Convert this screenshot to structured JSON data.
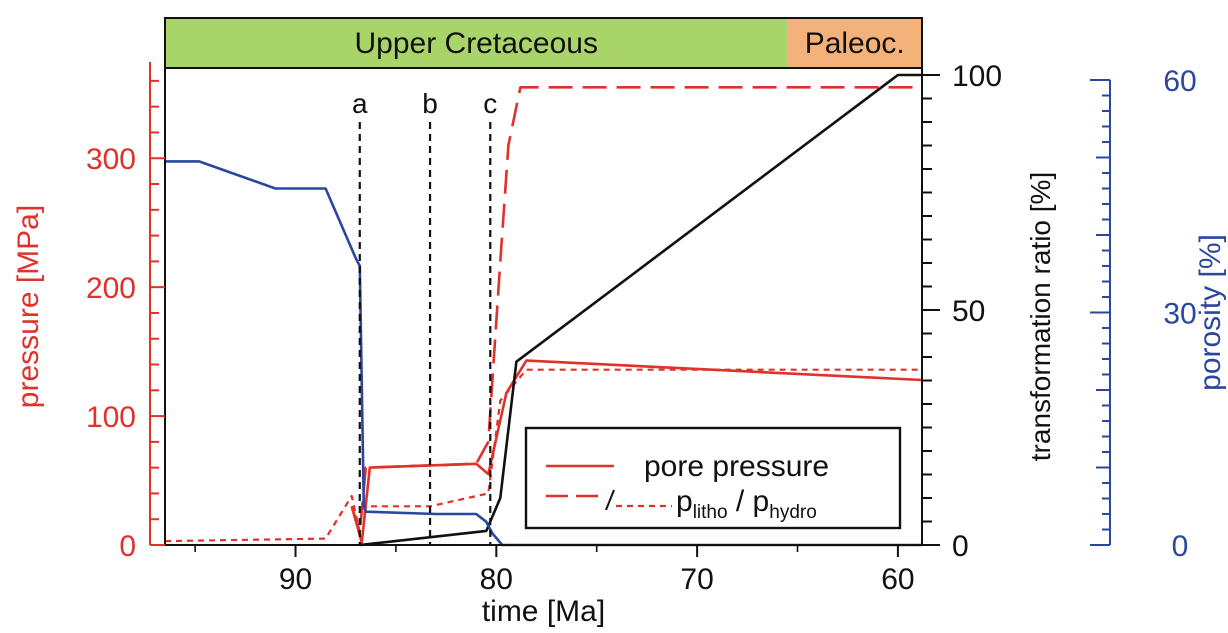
{
  "colors": {
    "pressure": "#e0312b",
    "porosity": "#2b46a0",
    "transformation": "#111111",
    "upper_cretaceous_band": "#a9d46a",
    "paleocene_band": "#f4b27a"
  },
  "epochs": [
    {
      "label": "Upper Cretaceous",
      "from": 96.5,
      "to": 65.5,
      "color": "#a9d46a"
    },
    {
      "label": "Paleoc.",
      "from": 65.5,
      "to": 58.8,
      "color": "#f4b27a"
    }
  ],
  "events": [
    {
      "label": "a",
      "time": 86.8
    },
    {
      "label": "b",
      "time": 83.3
    },
    {
      "label": "c",
      "time": 80.3
    }
  ],
  "legend": {
    "items": [
      {
        "label": "pore pressure",
        "style": "solid"
      },
      {
        "label": "p",
        "sub1": "litho",
        "sep": " / p",
        "sub2": "hydro",
        "style": "dashed-dotted"
      }
    ]
  },
  "chart_data": {
    "type": "line",
    "xlabel": "time [Ma]",
    "x_axis": {
      "range": [
        96.5,
        58.8
      ],
      "ticks": [
        90,
        80,
        70,
        60
      ],
      "reversed": true
    },
    "y_axes": {
      "pressure": {
        "label": "pressure [MPa]",
        "range": [
          0,
          370
        ],
        "ticks": [
          0,
          100,
          200,
          300
        ],
        "side": "left"
      },
      "transformation": {
        "label": "transformation ratio [%]",
        "range": [
          0,
          100
        ],
        "ticks": [
          0,
          50,
          100
        ],
        "side": "right"
      },
      "porosity": {
        "label": "porosity [%]",
        "range": [
          0,
          60
        ],
        "ticks": [
          0,
          30,
          60
        ],
        "side": "right"
      }
    },
    "series": [
      {
        "name": "pore pressure",
        "axis": "pressure",
        "style": "solid",
        "x": [
          87.2,
          86.7,
          86.3,
          81.0,
          80.4,
          79.5,
          78.5,
          58.8
        ],
        "y": [
          30,
          2,
          60,
          63,
          55,
          118,
          143,
          128
        ]
      },
      {
        "name": "p_litho",
        "axis": "pressure",
        "style": "dashed",
        "x": [
          87.2,
          86.8,
          86.5,
          81.0,
          80.4,
          79.8,
          79.4,
          78.8,
          58.8
        ],
        "y": [
          30,
          10,
          60,
          63,
          80,
          220,
          310,
          355,
          355
        ]
      },
      {
        "name": "p_hydro",
        "axis": "pressure",
        "style": "dotted",
        "x": [
          96.5,
          88.5,
          87.2,
          86.7,
          86.5,
          83.3,
          80.4,
          79.8,
          78.5,
          58.8
        ],
        "y": [
          3,
          5,
          38,
          3,
          30,
          30,
          40,
          112,
          136,
          136
        ]
      },
      {
        "name": "transformation ratio",
        "axis": "transformation",
        "style": "solid",
        "x": [
          86.8,
          80.5,
          79.8,
          79.0,
          60.0,
          58.8
        ],
        "y": [
          0,
          3,
          10,
          39,
          100,
          100
        ]
      },
      {
        "name": "porosity",
        "axis": "porosity",
        "style": "solid",
        "x": [
          96.5,
          94.8,
          91.0,
          88.5,
          87.0,
          86.8,
          86.6,
          86.5,
          83.0,
          81.0,
          80.5,
          80.2,
          79.7,
          58.8
        ],
        "y": [
          49.5,
          49.5,
          46,
          46,
          37,
          36,
          5,
          4.3,
          4,
          4,
          3,
          1.5,
          0,
          0
        ]
      }
    ]
  }
}
